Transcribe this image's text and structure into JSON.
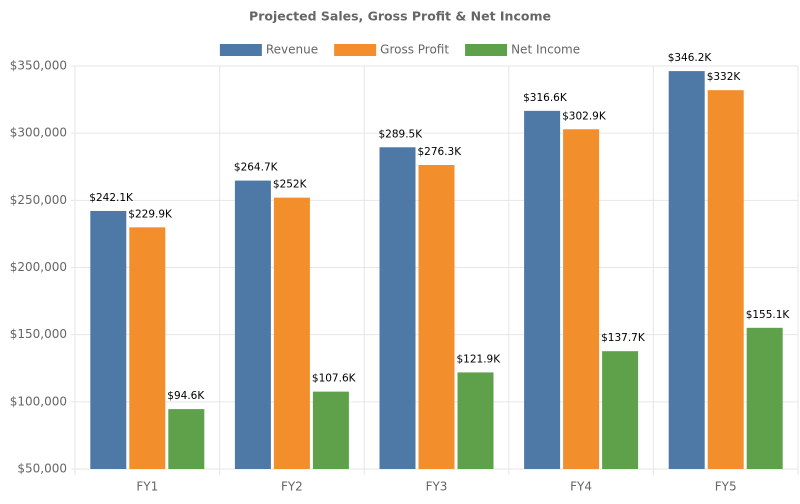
{
  "chart_data": {
    "type": "bar",
    "title": "Projected Sales, Gross Profit & Net Income",
    "categories": [
      "FY1",
      "FY2",
      "FY3",
      "FY4",
      "FY5"
    ],
    "series": [
      {
        "name": "Revenue",
        "color": "#4e79a7",
        "values": [
          242100,
          264700,
          289500,
          316600,
          346200
        ],
        "value_labels": [
          "$242.1K",
          "$264.7K",
          "$289.5K",
          "$316.6K",
          "$346.2K"
        ]
      },
      {
        "name": "Gross Profit",
        "color": "#f28e2b",
        "values": [
          229900,
          252000,
          276300,
          302900,
          332000
        ],
        "value_labels": [
          "$229.9K",
          "$252K",
          "$276.3K",
          "$302.9K",
          "$332K"
        ]
      },
      {
        "name": "Net Income",
        "color": "#5ea14a",
        "values": [
          94600,
          107600,
          121900,
          137700,
          155100
        ],
        "value_labels": [
          "$94.6K",
          "$107.6K",
          "$121.9K",
          "$137.7K",
          "$155.1K"
        ]
      }
    ],
    "ylim": [
      50000,
      350000
    ],
    "yticks": [
      {
        "value": 50000,
        "label": "$50,000"
      },
      {
        "value": 100000,
        "label": "$100,000"
      },
      {
        "value": 150000,
        "label": "$150,000"
      },
      {
        "value": 200000,
        "label": "$200,000"
      },
      {
        "value": 250000,
        "label": "$250,000"
      },
      {
        "value": 300000,
        "label": "$300,000"
      },
      {
        "value": 350000,
        "label": "$350,000"
      }
    ],
    "grid": true,
    "legend": "top"
  }
}
